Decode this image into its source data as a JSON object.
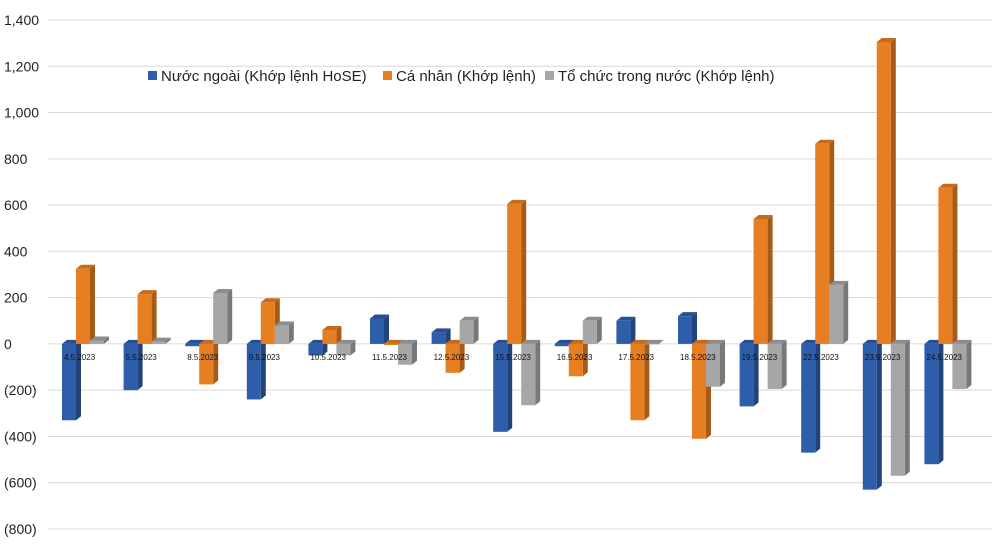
{
  "chart_data": {
    "type": "bar",
    "title": "",
    "xlabel": "",
    "ylabel": "",
    "ylim": [
      -800,
      1400
    ],
    "yticks": [
      1400,
      1200,
      1000,
      800,
      600,
      400,
      200,
      0,
      -200,
      -400,
      -600,
      -800
    ],
    "ytick_labels": [
      "1,400",
      "1,200",
      "1,000",
      "800",
      "600",
      "400",
      "200",
      "0",
      "(200)",
      "(400)",
      "(600)",
      "(800)"
    ],
    "grid": true,
    "legend_position": "top",
    "categories": [
      "4.5.2023",
      "5.5.2023",
      "8.5.2023",
      "9.5.2023",
      "10.5.2023",
      "11.5.2023",
      "12.5.2023",
      "15.5.2023",
      "16.5.2023",
      "17.5.2023",
      "18.5.2023",
      "19.5.2023",
      "22.5.2023",
      "23.5.2023",
      "24.5.2023"
    ],
    "series": [
      {
        "name": "Nước ngoài (Khớp lệnh HoSE)",
        "color": "#2E5EAA",
        "values": [
          -330,
          -200,
          -10,
          -240,
          -50,
          110,
          50,
          -380,
          -10,
          100,
          120,
          -270,
          -470,
          -630,
          -520
        ]
      },
      {
        "name": "Cá nhân (Khớp lệnh)",
        "color": "#E67E22",
        "values": [
          325,
          215,
          -175,
          180,
          60,
          -5,
          -125,
          605,
          -140,
          -330,
          -410,
          540,
          865,
          1305,
          675
        ]
      },
      {
        "name": "Tổ chức trong nước (Khớp lệnh)",
        "color": "#A6A6A6",
        "values": [
          15,
          10,
          220,
          80,
          -50,
          -90,
          100,
          -265,
          100,
          0,
          -185,
          -195,
          255,
          -570,
          -195
        ]
      }
    ]
  }
}
